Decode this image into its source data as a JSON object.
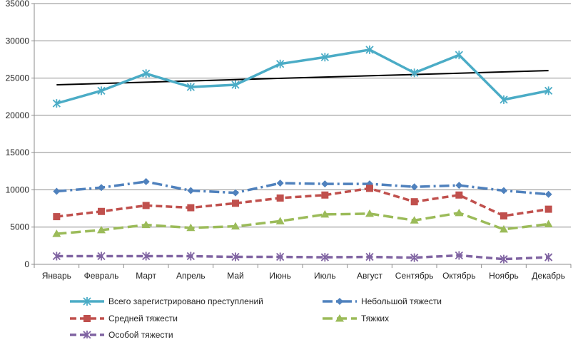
{
  "chart_data": {
    "type": "line",
    "categories": [
      "Январь",
      "Февраль",
      "Март",
      "Апрель",
      "Май",
      "Июнь",
      "Июль",
      "Август",
      "Сентябрь",
      "Октябрь",
      "Ноябрь",
      "Декабрь"
    ],
    "ylim": [
      0,
      35000
    ],
    "yticks": [
      0,
      5000,
      10000,
      15000,
      20000,
      25000,
      30000,
      35000
    ],
    "grid": true,
    "legend_position": "bottom",
    "series": [
      {
        "name": "Всего зарегистрировано преступлений",
        "values": [
          21600,
          23300,
          25600,
          23800,
          24100,
          26900,
          27800,
          28800,
          25700,
          28100,
          22100,
          23300
        ],
        "color": "#4BACC6",
        "dash": "solid",
        "marker": "star"
      },
      {
        "name": "Небольшой тяжести",
        "values": [
          9800,
          10300,
          11100,
          9900,
          9600,
          10900,
          10800,
          10800,
          10400,
          10600,
          9900,
          9400
        ],
        "color": "#4F81BD",
        "dash": "dashdot",
        "marker": "diamond"
      },
      {
        "name": "Средней тяжести",
        "values": [
          6400,
          7100,
          7900,
          7600,
          8200,
          8900,
          9300,
          10200,
          8400,
          9300,
          6500,
          7400
        ],
        "color": "#C0504D",
        "dash": "dash",
        "marker": "square"
      },
      {
        "name": "Тяжких",
        "values": [
          4100,
          4600,
          5300,
          4900,
          5100,
          5800,
          6700,
          6800,
          5900,
          6900,
          4700,
          5400
        ],
        "color": "#9BBB59",
        "dash": "longdash",
        "marker": "triangle"
      },
      {
        "name": "Особой тяжести",
        "values": [
          1100,
          1100,
          1100,
          1100,
          1000,
          1000,
          950,
          1000,
          900,
          1200,
          700,
          950
        ],
        "color": "#8064A2",
        "dash": "dash",
        "marker": "star"
      }
    ],
    "trendline": {
      "series": "Всего зарегистрировано преступлений",
      "start": 24100,
      "end": 26000,
      "color": "#000000"
    }
  }
}
